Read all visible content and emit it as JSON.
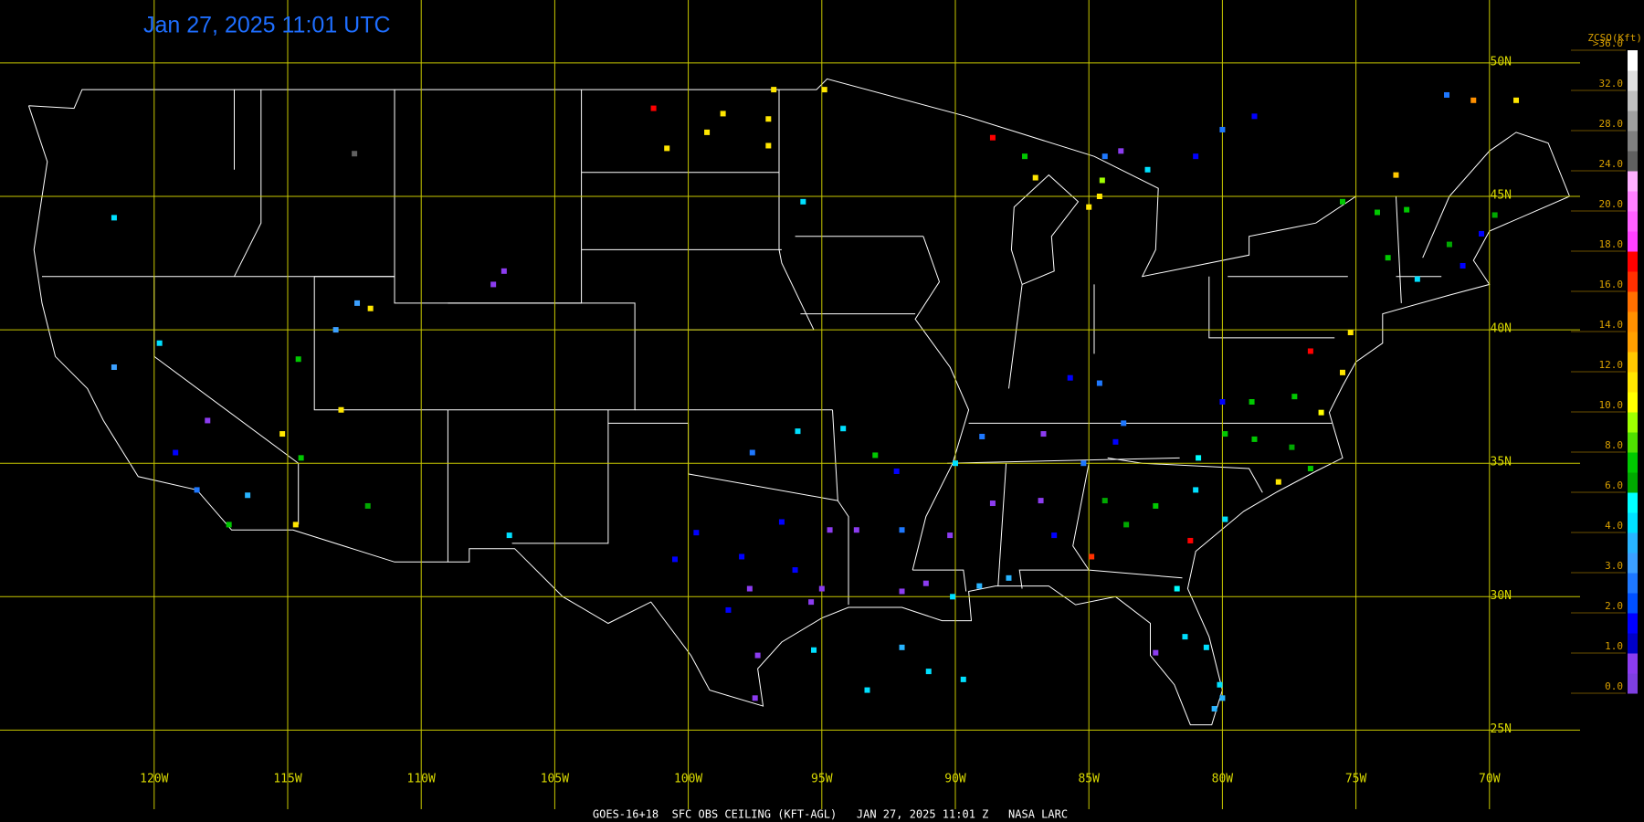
{
  "title": "Jan 27, 2025 11:01 UTC",
  "footer": "GOES-16+18  SFC OBS CEILING (KFT-AGL)   JAN 27, 2025 11:01 Z   NASA LARC",
  "lat_ticks": [
    {
      "value": 50,
      "label": "50N"
    },
    {
      "value": 45,
      "label": "45N"
    },
    {
      "value": 40,
      "label": "40N"
    },
    {
      "value": 35,
      "label": "35N"
    },
    {
      "value": 30,
      "label": "30N"
    },
    {
      "value": 25,
      "label": "25N"
    }
  ],
  "lon_ticks": [
    {
      "value": -120,
      "label": "120W"
    },
    {
      "value": -115,
      "label": "115W"
    },
    {
      "value": -110,
      "label": "110W"
    },
    {
      "value": -105,
      "label": "105W"
    },
    {
      "value": -100,
      "label": "100W"
    },
    {
      "value": -95,
      "label": "95W"
    },
    {
      "value": -90,
      "label": "90W"
    },
    {
      "value": -85,
      "label": "85W"
    },
    {
      "value": -80,
      "label": "80W"
    },
    {
      "value": -75,
      "label": "75W"
    },
    {
      "value": -70,
      "label": "70W"
    }
  ],
  "colorbar": {
    "title": "ZCSO(Kft)",
    "levels": [
      {
        "value": 0,
        "label": "0.0"
      },
      {
        "value": 1,
        "label": "1.0"
      },
      {
        "value": 2,
        "label": "2.0"
      },
      {
        "value": 3,
        "label": "3.0"
      },
      {
        "value": 4,
        "label": "4.0"
      },
      {
        "value": 6,
        "label": "6.0"
      },
      {
        "value": 8,
        "label": "8.0"
      },
      {
        "value": 10,
        "label": "10.0"
      },
      {
        "value": 12,
        "label": "12.0"
      },
      {
        "value": 14,
        "label": "14.0"
      },
      {
        "value": 16,
        "label": "16.0"
      },
      {
        "value": 18,
        "label": "18.0"
      },
      {
        "value": 20,
        "label": "20.0"
      },
      {
        "value": 24,
        "label": "24.0"
      },
      {
        "value": 28,
        "label": "28.0"
      },
      {
        "value": 32,
        "label": "32.0"
      },
      {
        "value": 36,
        "label": ">36.0"
      }
    ],
    "colors": [
      "#7e3fe0",
      "#8c3cf0",
      "#0000c8",
      "#0000ff",
      "#0050ff",
      "#1e78ff",
      "#3ca0ff",
      "#28b4ff",
      "#00e0ff",
      "#00ffff",
      "#00a800",
      "#00c800",
      "#50e000",
      "#a0ff00",
      "#ffff00",
      "#ffe600",
      "#ffc800",
      "#ffa000",
      "#ff9000",
      "#ff7000",
      "#ff3000",
      "#ff0000",
      "#ff40ff",
      "#ff60ff",
      "#ff80ff",
      "#ffb0ff",
      "#606060",
      "#808080",
      "#a0a0a0",
      "#c0c0c0",
      "#e0e0e0",
      "#ffffff"
    ]
  },
  "stations": [
    {
      "lon": -97.7,
      "lat": 30.3,
      "ceiling": 0.5
    },
    {
      "lon": -96.5,
      "lat": 32.8,
      "ceiling": 1.5
    },
    {
      "lon": -95.4,
      "lat": 29.8,
      "ceiling": 0.5
    },
    {
      "lon": -98.5,
      "lat": 29.5,
      "ceiling": 1.5
    },
    {
      "lon": -97.4,
      "lat": 27.8,
      "ceiling": 0.5
    },
    {
      "lon": -100.5,
      "lat": 31.4,
      "ceiling": 1.5
    },
    {
      "lon": -96,
      "lat": 31,
      "ceiling": 1.5
    },
    {
      "lon": -94.7,
      "lat": 32.5,
      "ceiling": 0.5
    },
    {
      "lon": -99.7,
      "lat": 32.4,
      "ceiling": 1.5
    },
    {
      "lon": -97.5,
      "lat": 26.2,
      "ceiling": 0.5
    },
    {
      "lon": -95,
      "lat": 30.3,
      "ceiling": 0.5
    },
    {
      "lon": -98,
      "lat": 31.5,
      "ceiling": 1.5
    },
    {
      "lon": -92,
      "lat": 30.2,
      "ceiling": 0.5
    },
    {
      "lon": -90.1,
      "lat": 30,
      "ceiling": 4.5
    },
    {
      "lon": -91.1,
      "lat": 30.5,
      "ceiling": 0.5
    },
    {
      "lon": -93.7,
      "lat": 32.5,
      "ceiling": 0.5
    },
    {
      "lon": -92,
      "lat": 32.5,
      "ceiling": 2.5
    },
    {
      "lon": -90.2,
      "lat": 32.3,
      "ceiling": 0.5
    },
    {
      "lon": -89.1,
      "lat": 30.4,
      "ceiling": 3.5
    },
    {
      "lon": -88.6,
      "lat": 33.5,
      "ceiling": 0.5
    },
    {
      "lon": -86.8,
      "lat": 33.6,
      "ceiling": 0.5
    },
    {
      "lon": -86.3,
      "lat": 32.3,
      "ceiling": 1.5
    },
    {
      "lon": -88,
      "lat": 30.7,
      "ceiling": 3.5
    },
    {
      "lon": -84.4,
      "lat": 33.6,
      "ceiling": 6.5
    },
    {
      "lon": -83.6,
      "lat": 32.7,
      "ceiling": 6.5
    },
    {
      "lon": -81.2,
      "lat": 32.1,
      "ceiling": 17
    },
    {
      "lon": -84.9,
      "lat": 31.5,
      "ceiling": 16.5
    },
    {
      "lon": -82.5,
      "lat": 33.4,
      "ceiling": 7
    },
    {
      "lon": -80.1,
      "lat": 26.7,
      "ceiling": 4.5
    },
    {
      "lon": -81.4,
      "lat": 28.5,
      "ceiling": 4.5
    },
    {
      "lon": -82.5,
      "lat": 27.9,
      "ceiling": 0.5
    },
    {
      "lon": -81.7,
      "lat": 30.3,
      "ceiling": 5
    },
    {
      "lon": -80.6,
      "lat": 28.1,
      "ceiling": 4.5
    },
    {
      "lon": -80.3,
      "lat": 25.8,
      "ceiling": 3.5
    },
    {
      "lon": -79.9,
      "lat": 32.9,
      "ceiling": 4.5
    },
    {
      "lon": -81,
      "lat": 34,
      "ceiling": 4.5
    },
    {
      "lon": -80.9,
      "lat": 35.2,
      "ceiling": 5
    },
    {
      "lon": -78.8,
      "lat": 35.9,
      "ceiling": 7
    },
    {
      "lon": -77.9,
      "lat": 34.3,
      "ceiling": 11
    },
    {
      "lon": -76.7,
      "lat": 34.8,
      "ceiling": 7
    },
    {
      "lon": -77.4,
      "lat": 35.6,
      "ceiling": 6.5
    },
    {
      "lon": -79.9,
      "lat": 36.1,
      "ceiling": 7
    },
    {
      "lon": -77.3,
      "lat": 37.5,
      "ceiling": 7
    },
    {
      "lon": -76.3,
      "lat": 36.9,
      "ceiling": 10.5
    },
    {
      "lon": -78.9,
      "lat": 37.3,
      "ceiling": 7
    },
    {
      "lon": -76.7,
      "lat": 39.2,
      "ceiling": 17
    },
    {
      "lon": -75.5,
      "lat": 38.4,
      "ceiling": 11
    },
    {
      "lon": -75.2,
      "lat": 39.9,
      "ceiling": 11
    },
    {
      "lon": -80,
      "lat": 37.3,
      "ceiling": 1.5
    },
    {
      "lon": -86.7,
      "lat": 36.1,
      "ceiling": 0.5
    },
    {
      "lon": -90,
      "lat": 35,
      "ceiling": 4.5
    },
    {
      "lon": -85.2,
      "lat": 35,
      "ceiling": 2.5
    },
    {
      "lon": -84,
      "lat": 35.8,
      "ceiling": 1.5
    },
    {
      "lon": -85.7,
      "lat": 38.2,
      "ceiling": 1.5
    },
    {
      "lon": -83.7,
      "lat": 36.5,
      "ceiling": 2.5
    },
    {
      "lon": -84.6,
      "lat": 38,
      "ceiling": 2.5
    },
    {
      "lon": -89,
      "lat": 36,
      "ceiling": 2.5
    },
    {
      "lon": -92.2,
      "lat": 34.7,
      "ceiling": 1.5
    },
    {
      "lon": -94.2,
      "lat": 36.3,
      "ceiling": 4.5
    },
    {
      "lon": -95.9,
      "lat": 36.2,
      "ceiling": 4.5
    },
    {
      "lon": -97.6,
      "lat": 35.4,
      "ceiling": 2.5
    },
    {
      "lon": -93,
      "lat": 35.3,
      "ceiling": 7
    },
    {
      "lon": -73.8,
      "lat": 42.7,
      "ceiling": 7
    },
    {
      "lon": -71,
      "lat": 42.4,
      "ceiling": 1.5
    },
    {
      "lon": -72.7,
      "lat": 41.9,
      "ceiling": 4.5
    },
    {
      "lon": -74.2,
      "lat": 44.4,
      "ceiling": 7
    },
    {
      "lon": -73.1,
      "lat": 44.5,
      "ceiling": 7
    },
    {
      "lon": -71.5,
      "lat": 43.2,
      "ceiling": 6.5
    },
    {
      "lon": -70.3,
      "lat": 43.6,
      "ceiling": 1.5
    },
    {
      "lon": -69.8,
      "lat": 44.3,
      "ceiling": 6.5
    },
    {
      "lon": -75.5,
      "lat": 44.8,
      "ceiling": 7
    },
    {
      "lon": -73.5,
      "lat": 45.8,
      "ceiling": 12
    },
    {
      "lon": -84.5,
      "lat": 45.6,
      "ceiling": 9
    },
    {
      "lon": -84.6,
      "lat": 45,
      "ceiling": 11
    },
    {
      "lon": -85,
      "lat": 44.6,
      "ceiling": 11
    },
    {
      "lon": -84.4,
      "lat": 46.5,
      "ceiling": 2.5
    },
    {
      "lon": -87.4,
      "lat": 46.5,
      "ceiling": 7
    },
    {
      "lon": -88.6,
      "lat": 47.2,
      "ceiling": 17
    },
    {
      "lon": -87,
      "lat": 45.7,
      "ceiling": 11
    },
    {
      "lon": -83.8,
      "lat": 46.7,
      "ceiling": 0.5
    },
    {
      "lon": -82.8,
      "lat": 46,
      "ceiling": 4.5
    },
    {
      "lon": -81,
      "lat": 46.5,
      "ceiling": 1.5
    },
    {
      "lon": -80,
      "lat": 47.5,
      "ceiling": 2.5
    },
    {
      "lon": -78.8,
      "lat": 48,
      "ceiling": 1.5
    },
    {
      "lon": -70.6,
      "lat": 48.6,
      "ceiling": 14
    },
    {
      "lon": -69,
      "lat": 48.6,
      "ceiling": 11
    },
    {
      "lon": -71.6,
      "lat": 48.8,
      "ceiling": 2.5
    },
    {
      "lon": -101.3,
      "lat": 48.3,
      "ceiling": 17
    },
    {
      "lon": -100.8,
      "lat": 46.8,
      "ceiling": 11
    },
    {
      "lon": -98.7,
      "lat": 48.1,
      "ceiling": 11
    },
    {
      "lon": -97,
      "lat": 46.9,
      "ceiling": 11
    },
    {
      "lon": -96.8,
      "lat": 49,
      "ceiling": 11
    },
    {
      "lon": -99.3,
      "lat": 47.4,
      "ceiling": 11
    },
    {
      "lon": -97,
      "lat": 47.9,
      "ceiling": 11
    },
    {
      "lon": -94.9,
      "lat": 49,
      "ceiling": 11
    },
    {
      "lon": -95.7,
      "lat": 44.8,
      "ceiling": 4.5
    },
    {
      "lon": -119.8,
      "lat": 39.5,
      "ceiling": 4.5
    },
    {
      "lon": -119.2,
      "lat": 35.4,
      "ceiling": 1.5
    },
    {
      "lon": -118.4,
      "lat": 34,
      "ceiling": 2.5
    },
    {
      "lon": -117.2,
      "lat": 32.7,
      "ceiling": 7
    },
    {
      "lon": -116.5,
      "lat": 33.8,
      "ceiling": 3.5
    },
    {
      "lon": -118,
      "lat": 36.6,
      "ceiling": 0.5
    },
    {
      "lon": -121.5,
      "lat": 38.6,
      "ceiling": 3
    },
    {
      "lon": -115.2,
      "lat": 36.1,
      "ceiling": 11
    },
    {
      "lon": -112,
      "lat": 33.4,
      "ceiling": 6
    },
    {
      "lon": -114.6,
      "lat": 38.9,
      "ceiling": 7
    },
    {
      "lon": -113,
      "lat": 37,
      "ceiling": 11
    },
    {
      "lon": -111.9,
      "lat": 40.8,
      "ceiling": 11
    },
    {
      "lon": -113.2,
      "lat": 40,
      "ceiling": 3
    },
    {
      "lon": -112.4,
      "lat": 41,
      "ceiling": 3
    },
    {
      "lon": -106.7,
      "lat": 32.3,
      "ceiling": 4.5
    },
    {
      "lon": -107.3,
      "lat": 41.7,
      "ceiling": 0.5
    },
    {
      "lon": -106.9,
      "lat": 42.2,
      "ceiling": 0.5
    },
    {
      "lon": -121.5,
      "lat": 44.2,
      "ceiling": 4.5
    },
    {
      "lon": -112.5,
      "lat": 46.6,
      "ceiling": 25
    },
    {
      "lon": -114.7,
      "lat": 32.7,
      "ceiling": 11
    },
    {
      "lon": -114.5,
      "lat": 35.2,
      "ceiling": 7
    },
    {
      "lon": -89.7,
      "lat": 26.9,
      "ceiling": 4.5
    },
    {
      "lon": -92,
      "lat": 28.1,
      "ceiling": 3.5
    },
    {
      "lon": -95.3,
      "lat": 28,
      "ceiling": 4.5
    },
    {
      "lon": -91,
      "lat": 27.2,
      "ceiling": 4.5
    },
    {
      "lon": -93.3,
      "lat": 26.5,
      "ceiling": 4.5
    },
    {
      "lon": -80,
      "lat": 26.2,
      "ceiling": 3.5
    }
  ]
}
